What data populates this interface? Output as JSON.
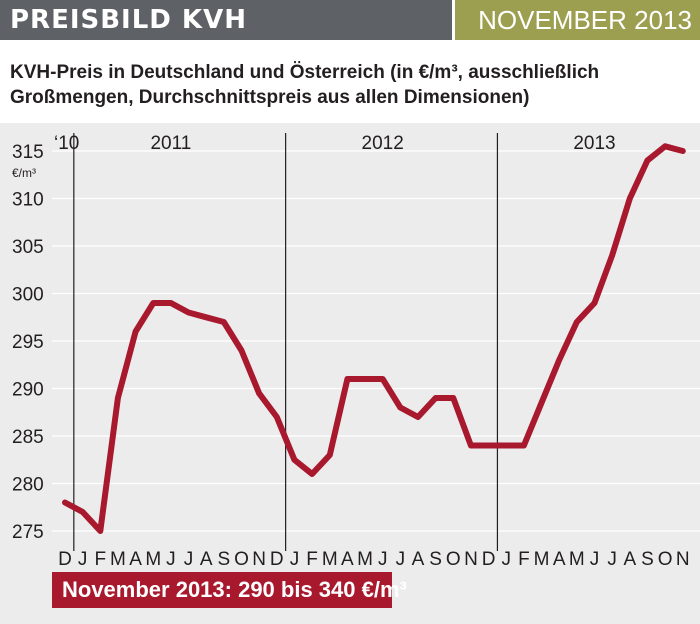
{
  "header": {
    "title": "PREISBILD KVH",
    "date": "NOVEMBER 2013",
    "colors": {
      "left": "#5e6266",
      "right": "#9b9f4f"
    }
  },
  "subtitle": "KVH-Preis in Deutschland und Österreich (in €/m³, ausschließlich Großmengen, Durchschnittspreis aus allen Dimensionen)",
  "price_box": {
    "text": "November 2013: 290 bis 340 €/m³",
    "color": "#a8192e"
  },
  "chart_data": {
    "type": "line",
    "title": "",
    "xlabel": "",
    "ylabel": "€/m³",
    "ylim": [
      275,
      315
    ],
    "yticks": [
      275,
      280,
      285,
      290,
      295,
      300,
      305,
      310,
      315
    ],
    "grid": true,
    "line_color": "#a8192e",
    "background": "#ececed",
    "year_labels": [
      "‘10",
      "2011",
      "2012",
      "2013"
    ],
    "categories": [
      "D",
      "J",
      "F",
      "M",
      "A",
      "M",
      "J",
      "J",
      "A",
      "S",
      "O",
      "N",
      "D",
      "J",
      "F",
      "M",
      "A",
      "M",
      "J",
      "J",
      "A",
      "S",
      "O",
      "N",
      "D",
      "J",
      "F",
      "M",
      "A",
      "M",
      "J",
      "J",
      "A",
      "S",
      "O",
      "N"
    ],
    "series": [
      {
        "name": "",
        "values": [
          278,
          277,
          275,
          289,
          296,
          299,
          299,
          298,
          297.5,
          297,
          294,
          289.5,
          287,
          282.5,
          281,
          283,
          291,
          291,
          291,
          288,
          287,
          289,
          289,
          284,
          284,
          284,
          284,
          288.5,
          293,
          297,
          299,
          304,
          310,
          314,
          315.5,
          315
        ]
      }
    ]
  }
}
